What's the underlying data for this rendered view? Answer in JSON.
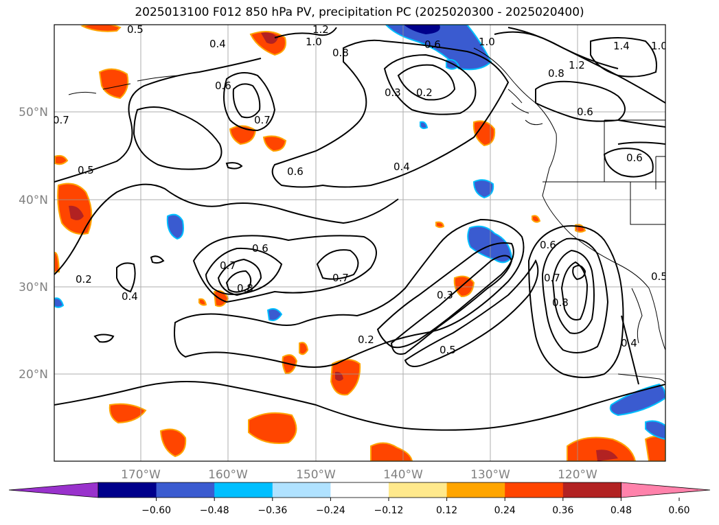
{
  "title": "2025013100 F012 850 hPa PV, precipitation PC (2025020300 - 2025020400)",
  "map": {
    "lat_labels": [
      "50°N",
      "40°N",
      "30°N",
      "20°N"
    ],
    "lon_labels": [
      "170°W",
      "160°W",
      "150°W",
      "140°W",
      "130°W",
      "120°W"
    ],
    "contour_labels": [
      "0.5",
      "0.4",
      "1.2",
      "1.0",
      "0.8",
      "0.6",
      "1.0",
      "1.4",
      "1.0",
      "0.6",
      "0.2",
      "0.3",
      "0.8",
      "1.2",
      "0.6",
      "0.7",
      "0.6",
      "0.6",
      "0.5",
      "0.4",
      "0.7",
      "0.6",
      "0.7",
      "0.8",
      "0.7",
      "0.6",
      "0.7",
      "0.2",
      "0.4",
      "0.3",
      "0.8",
      "0.2",
      "0.5",
      "0.4",
      "0.5"
    ]
  },
  "colorbar": {
    "tick_labels": [
      "−0.60",
      "−0.48",
      "−0.36",
      "−0.24",
      "−0.12",
      "0.12",
      "0.24",
      "0.36",
      "0.48",
      "0.60"
    ],
    "colors": [
      "#9932cc",
      "#00008b",
      "#3a5bd0",
      "#00bfff",
      "#b0e2ff",
      "#ffffff",
      "#ffe98c",
      "#ffa500",
      "#ff4500",
      "#b22222",
      "#ff82ab"
    ]
  }
}
